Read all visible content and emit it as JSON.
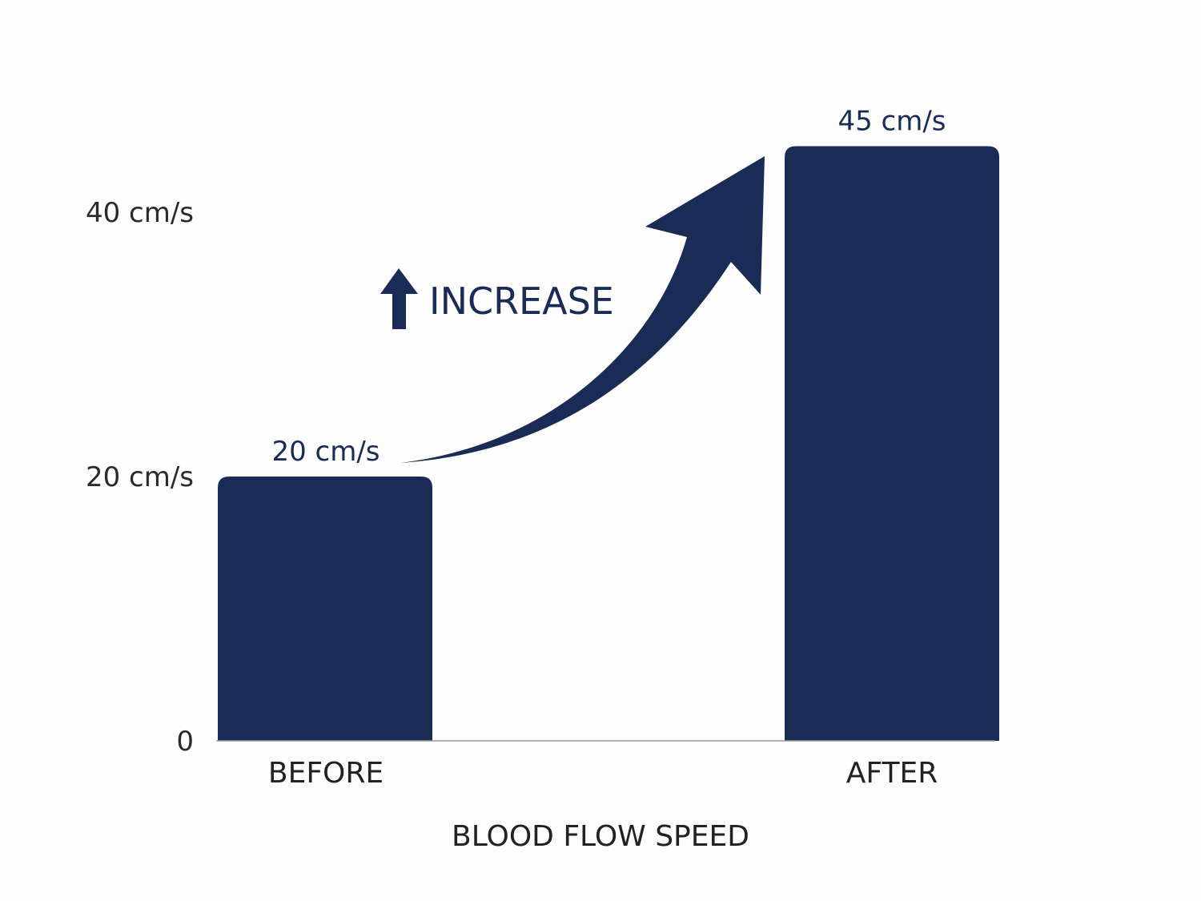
{
  "chart_data": {
    "type": "bar",
    "categories": [
      "BEFORE",
      "AFTER"
    ],
    "values": [
      20,
      45
    ],
    "data_labels": [
      "20 cm/s",
      "45 cm/s"
    ],
    "title": "",
    "xlabel": "BLOOD FLOW SPEED",
    "ylabel": "",
    "ylim": [
      0,
      45
    ],
    "yticks": [
      0,
      20,
      40
    ],
    "ytick_labels": [
      "0",
      "20 cm/s",
      "40 cm/s"
    ],
    "grid": false,
    "legend": "none",
    "annotation": "INCREASE",
    "annotation_icon": "up-arrow-icon",
    "trend_arrow": "curved-arrow-icon",
    "colors": {
      "bar": "#1a2c56",
      "text": "#222222",
      "background": "#fdfdfe"
    }
  }
}
